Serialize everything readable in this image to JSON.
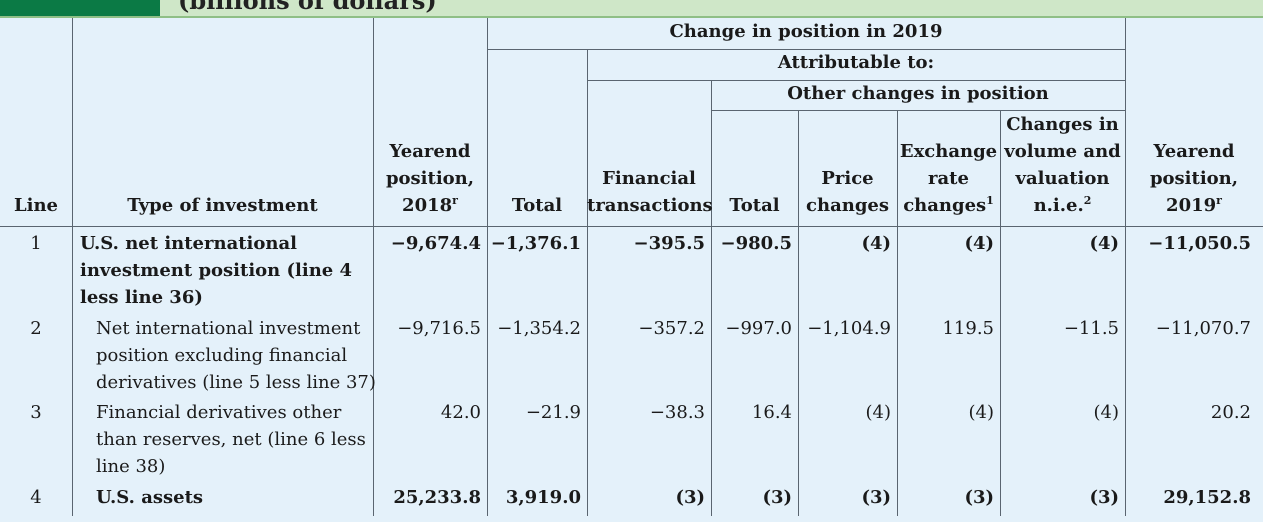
{
  "banner_title": "(billions of dollars)",
  "headers": {
    "line": "Line",
    "type": "Type of investment",
    "yearend_2018": [
      "Yearend",
      "position,",
      "2018"
    ],
    "yearend_2018_sup": "r",
    "change_group": "Change in position in 2019",
    "attributable": "Attributable to:",
    "other_changes": "Other changes in position",
    "total": "Total",
    "financial": [
      "Financial",
      "transactions"
    ],
    "other_total": "Total",
    "price": [
      "Price",
      "changes"
    ],
    "exchange": [
      "Exchange",
      "rate",
      "changes"
    ],
    "exchange_sup": "1",
    "volume": [
      "Changes in",
      "volume and",
      "valuation",
      "n.i.e."
    ],
    "volume_sup": "2",
    "yearend_2019": [
      "Yearend",
      "position,",
      "2019"
    ],
    "yearend_2019_sup": "r"
  },
  "rows": [
    {
      "line": "1",
      "type": [
        "U.S. net international",
        "investment position (line 4",
        "less line 36)"
      ],
      "y2018": "−9,674.4",
      "total": "−1,376.1",
      "fin": "−395.5",
      "ototal": "−980.5",
      "price": "(4)",
      "exch": "(4)",
      "vol": "(4)",
      "y2019": "−11,050.5"
    },
    {
      "line": "2",
      "type": [
        "Net international investment",
        "position excluding financial",
        "derivatives (line 5 less line 37)"
      ],
      "y2018": "−9,716.5",
      "total": "−1,354.2",
      "fin": "−357.2",
      "ototal": "−997.0",
      "price": "−1,104.9",
      "exch": "119.5",
      "vol": "−11.5",
      "y2019": "−11,070.7"
    },
    {
      "line": "3",
      "type": [
        "Financial derivatives other",
        "than reserves, net (line 6 less",
        "line 38)"
      ],
      "y2018": "42.0",
      "total": "−21.9",
      "fin": "−38.3",
      "ototal": "16.4",
      "price": "(4)",
      "exch": "(4)",
      "vol": "(4)",
      "y2019": "20.2"
    },
    {
      "line": "4",
      "type": [
        "U.S. assets"
      ],
      "y2018": "25,233.8",
      "total": "3,919.0",
      "fin": "(3)",
      "ototal": "(3)",
      "price": "(3)",
      "exch": "(3)",
      "vol": "(3)",
      "y2019": "29,152.8"
    }
  ]
}
